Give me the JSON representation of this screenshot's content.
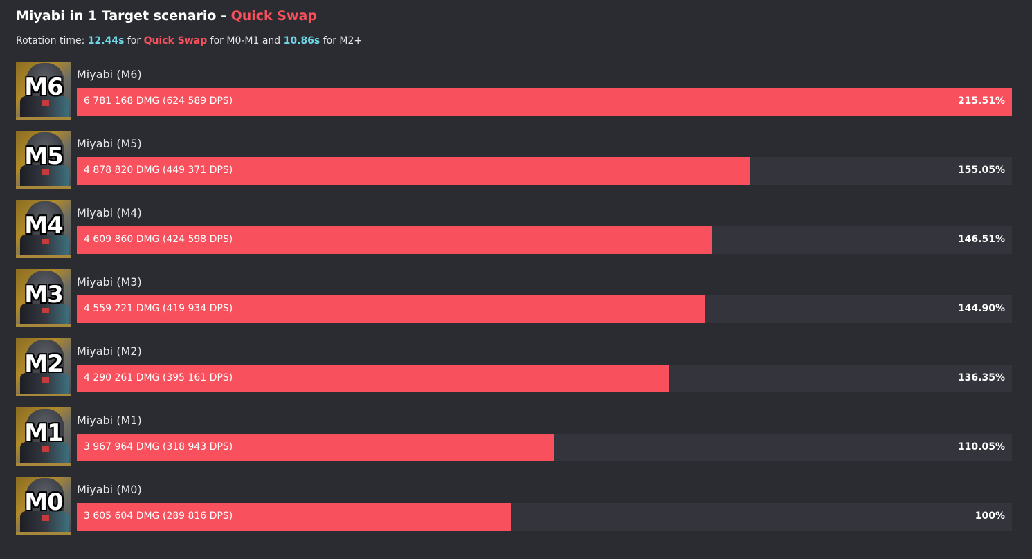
{
  "header": {
    "title_main": "Miyabi in 1 Target scenario - ",
    "title_accent": "Quick Swap",
    "subtitle_prefix": "Rotation time: ",
    "time_1": "12.44s",
    "subtitle_for": " for ",
    "mode": "Quick Swap",
    "subtitle_mid": " for M0-M1 and ",
    "time_2": "10.86s",
    "subtitle_suffix": " for M2+"
  },
  "colors": {
    "bar": "#f8505c",
    "track": "#34353c",
    "background": "#2b2c31",
    "time_accent": "#6ed8e8",
    "mode_accent": "#f8505c"
  },
  "chart_data": {
    "type": "bar",
    "orientation": "horizontal",
    "title": "Miyabi in 1 Target scenario - Quick Swap",
    "categories": [
      "Miyabi (M6)",
      "Miyabi (M5)",
      "Miyabi (M4)",
      "Miyabi (M3)",
      "Miyabi (M2)",
      "Miyabi (M1)",
      "Miyabi (M0)"
    ],
    "portrait_labels": [
      "M6",
      "M5",
      "M4",
      "M3",
      "M2",
      "M1",
      "M0"
    ],
    "values": [
      215.51,
      155.05,
      146.51,
      144.9,
      136.35,
      110.05,
      100
    ],
    "dmg_labels": [
      "6 781 168 DMG (624 589 DPS)",
      "4 878 820 DMG (449 371 DPS)",
      "4 609 860 DMG (424 598 DPS)",
      "4 559 221 DMG (419 934 DPS)",
      "4 290 261 DMG (395 161 DPS)",
      "3 967 964 DMG (318 943 DPS)",
      "3 605 604 DMG (289 816 DPS)"
    ],
    "pct_labels": [
      "215.51%",
      "155.05%",
      "146.51%",
      "144.90%",
      "136.35%",
      "110.05%",
      "100%"
    ],
    "xlim": [
      0,
      215.51
    ]
  }
}
